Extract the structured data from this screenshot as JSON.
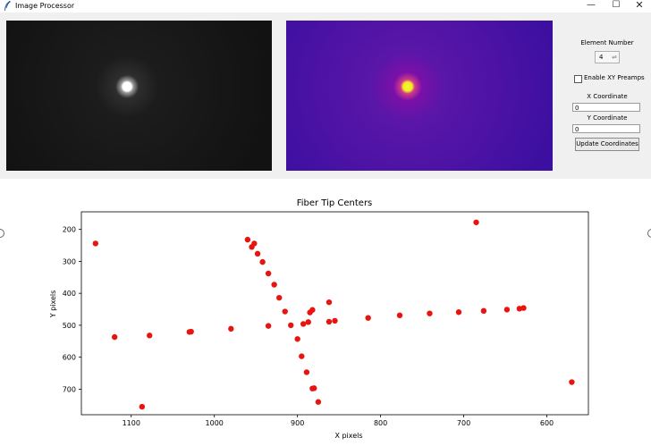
{
  "window": {
    "title": "Image Processor",
    "min_glyph": "—",
    "max_glyph": "☐",
    "close_glyph": "✕",
    "icon": "feather-icon"
  },
  "controls": {
    "element_label": "Element Number",
    "element_value": "4",
    "preamp_label": "Enable XY Preamps",
    "preamp_checked": false,
    "x_label": "X Coordinate",
    "x_value": "0",
    "y_label": "Y Coordinate",
    "y_value": "0",
    "update_label": "Update Coordinates"
  },
  "colors": {
    "marker": "#e8140f",
    "dark_image": "#121212",
    "colormap_bg": "#3c0fa0",
    "colormap_spot": "#f0ee20"
  },
  "chart_data": {
    "type": "scatter",
    "title": "Fiber Tip Centers",
    "xlabel": "X  pixels",
    "ylabel": "Y pixels",
    "xlim": [
      1160,
      550
    ],
    "ylim": [
      780,
      145
    ],
    "x_inverted": true,
    "y_inverted": true,
    "xticks": [
      1100,
      1000,
      900,
      800,
      700,
      600
    ],
    "yticks": [
      200,
      300,
      400,
      500,
      600,
      700
    ],
    "grid": false,
    "points": [
      {
        "x": 1143,
        "y": 244
      },
      {
        "x": 1120,
        "y": 537
      },
      {
        "x": 1087,
        "y": 755
      },
      {
        "x": 1078,
        "y": 532
      },
      {
        "x": 1030,
        "y": 521
      },
      {
        "x": 1028,
        "y": 520
      },
      {
        "x": 980,
        "y": 511
      },
      {
        "x": 960,
        "y": 232
      },
      {
        "x": 955,
        "y": 255
      },
      {
        "x": 952,
        "y": 244
      },
      {
        "x": 948,
        "y": 276
      },
      {
        "x": 942,
        "y": 302
      },
      {
        "x": 935,
        "y": 338
      },
      {
        "x": 928,
        "y": 373
      },
      {
        "x": 922,
        "y": 414
      },
      {
        "x": 915,
        "y": 457
      },
      {
        "x": 908,
        "y": 500
      },
      {
        "x": 900,
        "y": 543
      },
      {
        "x": 935,
        "y": 502
      },
      {
        "x": 895,
        "y": 597
      },
      {
        "x": 889,
        "y": 647
      },
      {
        "x": 882,
        "y": 698
      },
      {
        "x": 880,
        "y": 697
      },
      {
        "x": 875,
        "y": 740
      },
      {
        "x": 893,
        "y": 496
      },
      {
        "x": 887,
        "y": 490
      },
      {
        "x": 885,
        "y": 460
      },
      {
        "x": 882,
        "y": 452
      },
      {
        "x": 862,
        "y": 428
      },
      {
        "x": 862,
        "y": 489
      },
      {
        "x": 855,
        "y": 486
      },
      {
        "x": 815,
        "y": 477
      },
      {
        "x": 777,
        "y": 469
      },
      {
        "x": 741,
        "y": 463
      },
      {
        "x": 706,
        "y": 459
      },
      {
        "x": 685,
        "y": 178
      },
      {
        "x": 676,
        "y": 455
      },
      {
        "x": 648,
        "y": 451
      },
      {
        "x": 633,
        "y": 448
      },
      {
        "x": 628,
        "y": 446
      },
      {
        "x": 570,
        "y": 678
      }
    ]
  }
}
